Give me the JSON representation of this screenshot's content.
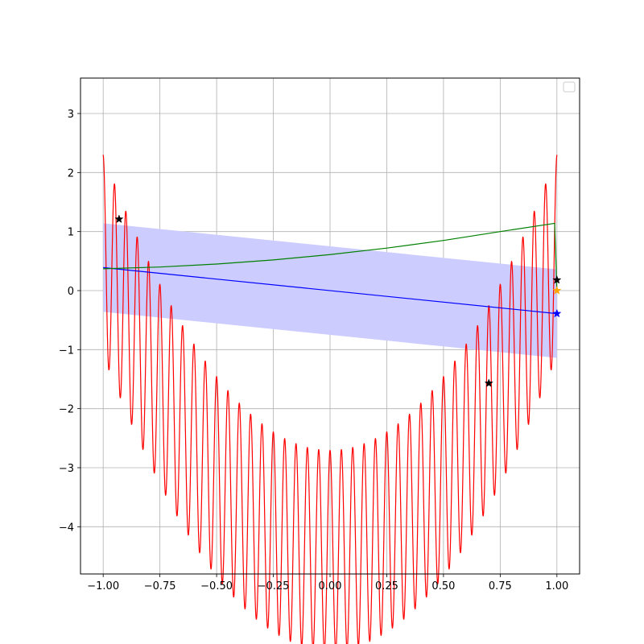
{
  "chart_data": {
    "type": "line",
    "title": "",
    "xlabel": "",
    "ylabel": "",
    "xlim": [
      -1.1,
      1.1
    ],
    "ylim": [
      -4.8,
      3.6
    ],
    "grid": true,
    "legend": {
      "placement": "top-right",
      "entries": []
    },
    "x_ticks": [
      -1.0,
      -0.75,
      -0.5,
      -0.25,
      0.0,
      0.25,
      0.5,
      0.75,
      1.0
    ],
    "x_tick_labels": [
      "−1.00",
      "−0.75",
      "−0.50",
      "−0.25",
      "0.00",
      "0.25",
      "0.50",
      "0.75",
      "1.00"
    ],
    "y_ticks": [
      -4,
      -3,
      -2,
      -1,
      0,
      1,
      2,
      3
    ],
    "y_tick_labels": [
      "−4",
      "−3",
      "−2",
      "−1",
      "0",
      "1",
      "2",
      "3"
    ],
    "series": [
      {
        "kind": "line",
        "color": "#ff0000",
        "function": "5*x^2 - 4.4 + 1.7*cos(2*pi*20*x)",
        "x_range": [
          -1.0,
          1.0
        ],
        "samples": 1200
      },
      {
        "kind": "line",
        "color": "#0000ff",
        "x": [
          -1.0,
          1.0
        ],
        "y": [
          0.39,
          -0.39
        ]
      },
      {
        "kind": "line",
        "color": "#008000",
        "x": [
          -1.0,
          -0.75,
          -0.5,
          -0.25,
          0.0,
          0.25,
          0.5,
          0.75,
          0.99,
          1.0
        ],
        "y": [
          0.37,
          0.4,
          0.45,
          0.52,
          0.61,
          0.72,
          0.85,
          1.0,
          1.14,
          0.0
        ]
      },
      {
        "kind": "band",
        "color": "#ccccff",
        "x": [
          -1.0,
          1.0
        ],
        "lower": [
          -0.36,
          -1.14
        ],
        "upper": [
          1.14,
          0.36
        ]
      },
      {
        "kind": "markers",
        "color": "#000000",
        "marker": "star",
        "x": [
          -0.93,
          0.7,
          1.0
        ],
        "y": [
          1.21,
          -1.57,
          0.18
        ]
      },
      {
        "kind": "markers",
        "color": "#ffa500",
        "marker": "star",
        "x": [
          1.0
        ],
        "y": [
          0.0
        ]
      },
      {
        "kind": "markers",
        "color": "#0000ff",
        "marker": "star",
        "x": [
          1.0
        ],
        "y": [
          -0.39
        ]
      }
    ]
  }
}
